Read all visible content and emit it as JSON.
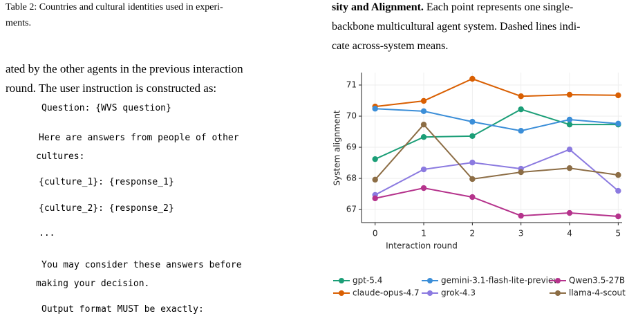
{
  "document": {
    "left_caption": [
      "Table 2: Countries and cultural identities used in experi-",
      "ments."
    ],
    "paragraph": [
      "ated by the other agents in the previous interaction",
      "round. The user instruction is constructed as:"
    ],
    "code": [
      "Question: {WVS question}",
      "Here are answers from people of other",
      "cultures:",
      "{culture_1}: {response_1}",
      "{culture_2}: {response_2}",
      "...",
      "You may consider these answers before",
      "making your decision.",
      "Output format MUST be exactly:"
    ],
    "right_caption": {
      "bold": "sity and Alignment.",
      "lines": [
        "Each point represents one single-",
        "backbone multicultural agent system. Dashed lines indi-",
        "cate across-system means."
      ]
    }
  },
  "chart_data": {
    "type": "line",
    "xlabel": "Interaction round",
    "ylabel": "System alignment",
    "x": [
      0,
      1,
      2,
      3,
      4,
      5
    ],
    "xlim": [
      -0.28,
      5.08
    ],
    "xticks": [
      0,
      1,
      2,
      3,
      4,
      5
    ],
    "ylim": [
      66.58,
      71.4
    ],
    "yticks": [
      67,
      68,
      69,
      70,
      71
    ],
    "grid": true,
    "series": [
      {
        "name": "gpt-5.4",
        "color": "#1b9e77",
        "values": [
          68.62,
          69.33,
          69.36,
          70.22,
          69.73,
          69.73
        ]
      },
      {
        "name": "claude-opus-4.7",
        "color": "#d95f02",
        "values": [
          70.31,
          70.49,
          71.2,
          70.64,
          70.69,
          70.67
        ]
      },
      {
        "name": "gemini-3.1-flash-lite-preview",
        "color": "#3b8ed8",
        "values": [
          70.24,
          70.16,
          69.82,
          69.53,
          69.89,
          69.76
        ]
      },
      {
        "name": "grok-4.3",
        "color": "#8b7ae0",
        "values": [
          67.47,
          68.29,
          68.51,
          68.31,
          68.93,
          67.6
        ]
      },
      {
        "name": "Qwen3.5-27B",
        "color": "#b5338c",
        "values": [
          67.36,
          67.69,
          67.4,
          66.8,
          66.89,
          66.78
        ]
      },
      {
        "name": "llama-4-scout",
        "color": "#8c6d45",
        "values": [
          67.96,
          69.73,
          67.98,
          68.2,
          68.33,
          68.11
        ]
      }
    ]
  }
}
